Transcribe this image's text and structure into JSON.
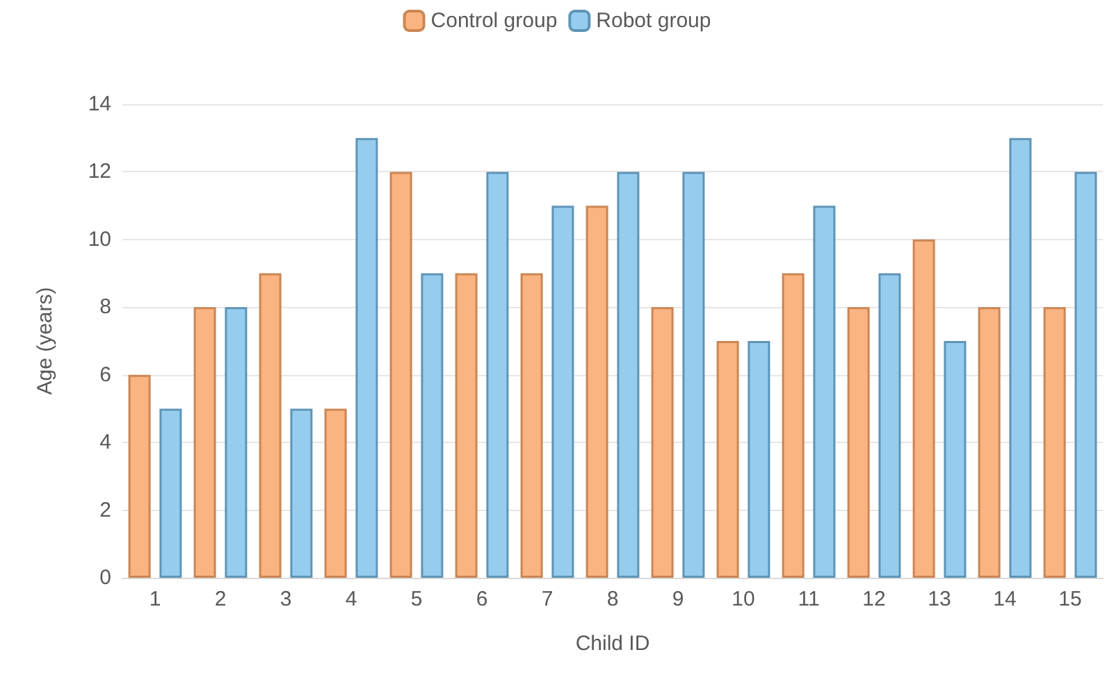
{
  "chart_data": {
    "type": "bar",
    "xlabel": "Child ID",
    "ylabel": "Age (years)",
    "categories": [
      "1",
      "2",
      "3",
      "4",
      "5",
      "6",
      "7",
      "8",
      "9",
      "10",
      "11",
      "12",
      "13",
      "14",
      "15"
    ],
    "series": [
      {
        "name": "Control group",
        "color": "#f9b482",
        "values": [
          6,
          8,
          9,
          5,
          12,
          9,
          9,
          11,
          8,
          7,
          9,
          8,
          10,
          8,
          8
        ]
      },
      {
        "name": "Robot group",
        "color": "#96cdef",
        "values": [
          5,
          8,
          5,
          13,
          9,
          12,
          11,
          12,
          12,
          7,
          11,
          9,
          7,
          13,
          12
        ]
      }
    ],
    "ylim": [
      0,
      14
    ],
    "yticks": [
      0,
      2,
      4,
      6,
      8,
      10,
      12,
      14
    ],
    "grid": "y",
    "legend": "top"
  }
}
